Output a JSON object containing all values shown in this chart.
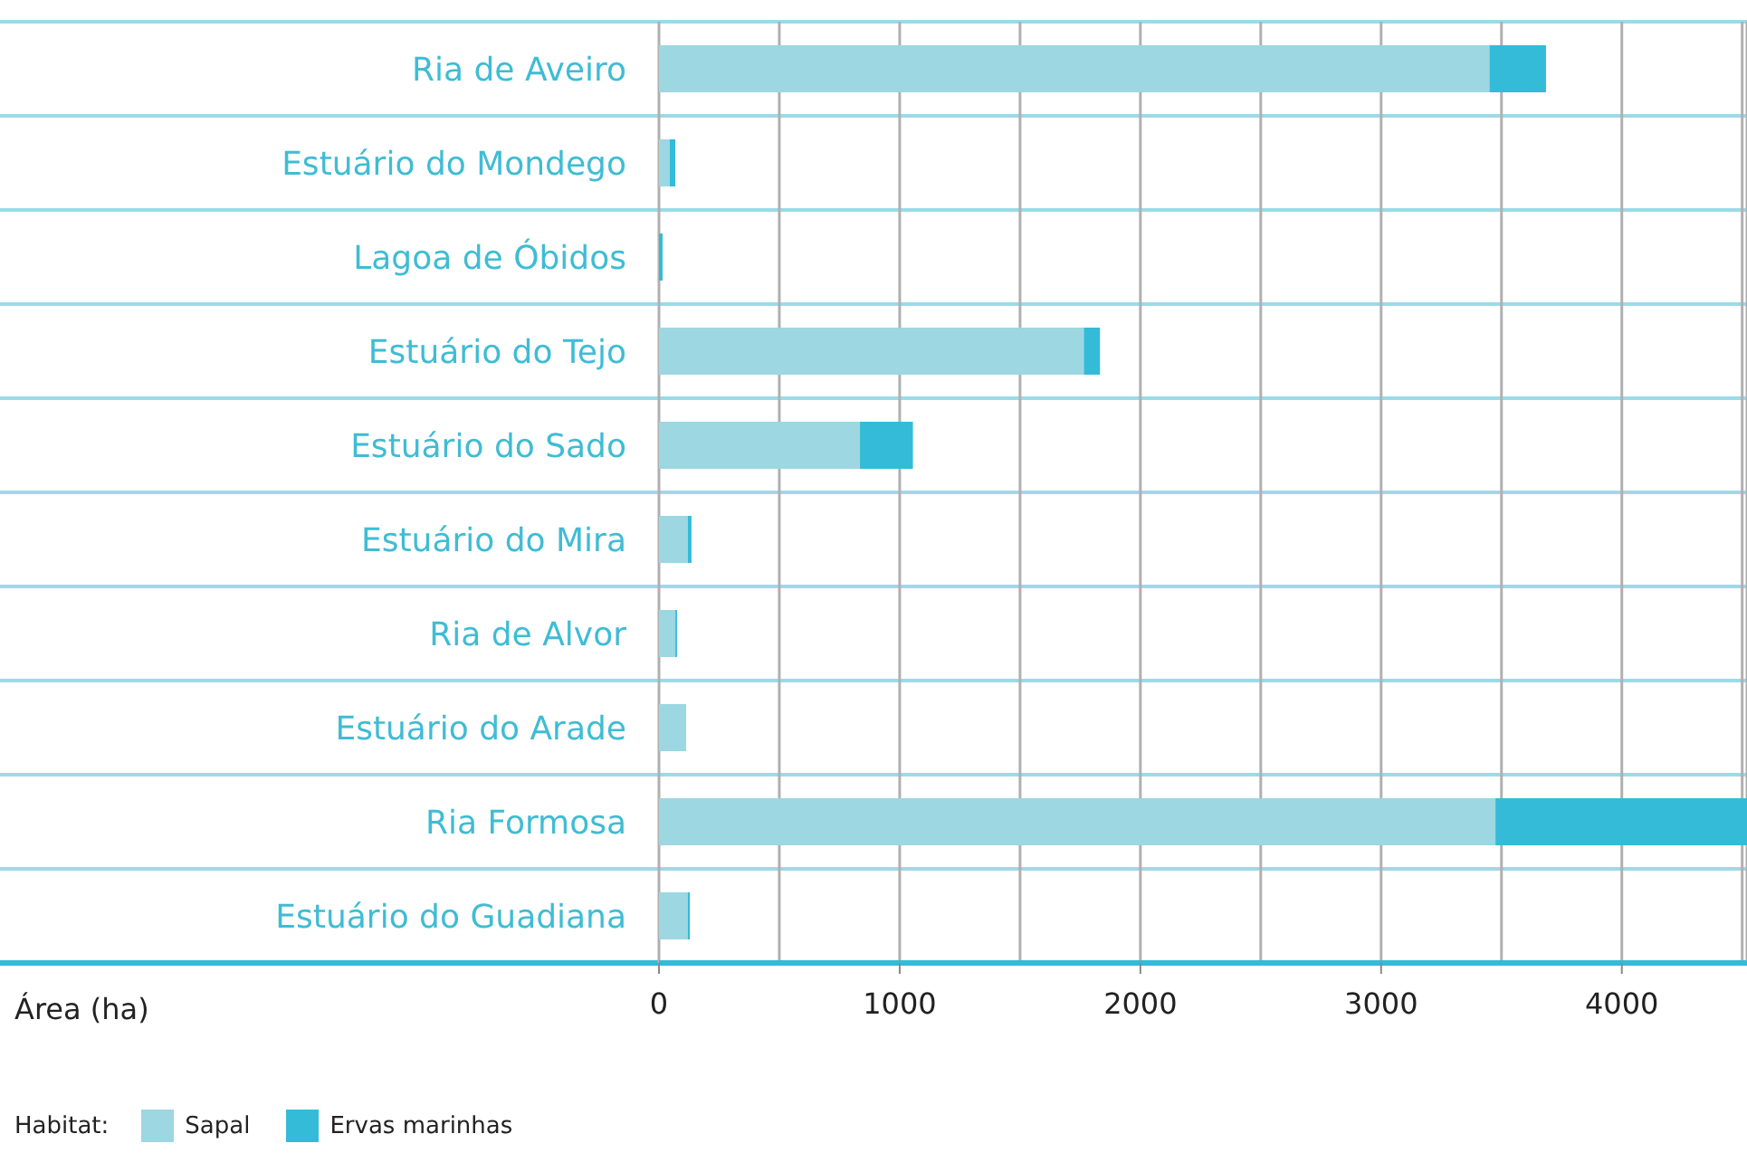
{
  "chart_data": {
    "type": "bar",
    "orientation": "horizontal",
    "stacked": true,
    "categories": [
      "Ria de Aveiro",
      "Estuário do Mondego",
      "Lagoa de Óbidos",
      "Estuário do Tejo",
      "Estuário do Sado",
      "Estuário do Mira",
      "Ria de Alvor",
      "Estuário do Arade",
      "Ria Formosa",
      "Estuário do Guadiana"
    ],
    "series": [
      {
        "name": "Sapal",
        "color": "#9cd7e2",
        "values": [
          3450,
          45,
          null,
          1765,
          835,
          120,
          68,
          113,
          3475,
          120
        ]
      },
      {
        "name": "Ervas marinhas",
        "color": "#33bbd8",
        "values": [
          235,
          23,
          15,
          67,
          220,
          15,
          7,
          0,
          1045,
          8
        ]
      }
    ],
    "annotations": [
      "Área (ha)"
    ],
    "legend_title": "Habitat:",
    "legend": "bottom left",
    "grid": "x",
    "xlim": [
      0,
      4520
    ],
    "xticks": [
      0,
      {
        "value": 500,
        "label": null
      },
      1000,
      {
        "value": 1500,
        "label": null
      },
      2000,
      {
        "value": 2500,
        "label": null
      },
      3000,
      {
        "value": 3500,
        "label": null
      },
      4000,
      {
        "value": 4500,
        "label": null
      }
    ]
  }
}
